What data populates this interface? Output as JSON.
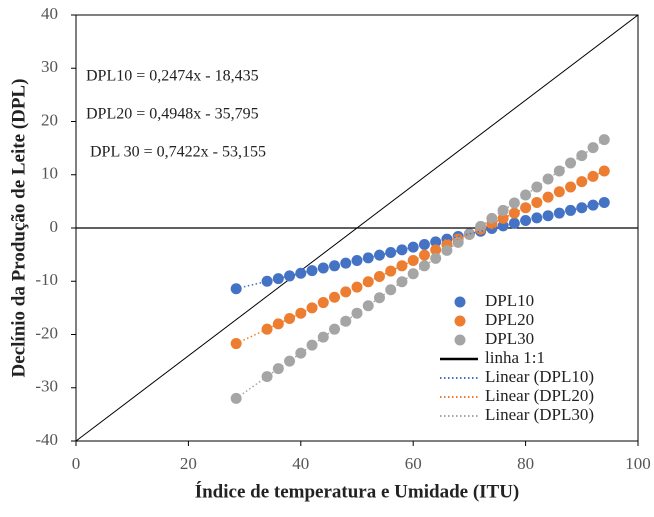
{
  "chart_data": {
    "type": "scatter",
    "x_label": "Índice de temperatura e Umidade (ITU)",
    "y_label": "Declínio da Produção de Leite (DPL)",
    "xlim": [
      0,
      100
    ],
    "ylim": [
      -40,
      40
    ],
    "xticks": [
      0,
      20,
      40,
      60,
      80,
      100
    ],
    "yticks": [
      -40,
      -30,
      -20,
      -10,
      0,
      10,
      20,
      30,
      40
    ],
    "x": [
      28.5,
      34,
      36,
      38,
      40,
      42,
      44,
      46,
      48,
      50,
      52,
      54,
      56,
      58,
      60,
      62,
      64,
      66,
      68,
      70,
      72,
      74,
      76,
      78,
      80,
      82,
      84,
      86,
      88,
      90,
      92,
      94
    ],
    "series": [
      {
        "name": "DPL10",
        "color": "#4472c4",
        "values": [
          -11.4,
          -10.0,
          -9.5,
          -9.0,
          -8.5,
          -8.0,
          -7.5,
          -7.1,
          -6.6,
          -6.1,
          -5.6,
          -5.1,
          -4.6,
          -4.1,
          -3.6,
          -3.1,
          -2.6,
          -2.1,
          -1.6,
          -1.1,
          -0.6,
          -0.1,
          0.4,
          0.9,
          1.4,
          1.9,
          2.3,
          2.8,
          3.3,
          3.8,
          4.3,
          4.8
        ]
      },
      {
        "name": "DPL20",
        "color": "#ed7d31",
        "values": [
          -21.7,
          -19.0,
          -18.0,
          -17.0,
          -16.0,
          -15.0,
          -14.0,
          -13.0,
          -12.0,
          -11.1,
          -10.1,
          -9.1,
          -8.1,
          -7.1,
          -6.1,
          -5.1,
          -4.1,
          -3.1,
          -2.1,
          -1.2,
          -0.2,
          0.8,
          1.8,
          2.8,
          3.8,
          4.8,
          5.8,
          6.8,
          7.7,
          8.7,
          9.7,
          10.7
        ]
      },
      {
        "name": "DPL30",
        "color": "#a5a5a5",
        "values": [
          -32.0,
          -27.9,
          -26.4,
          -25.0,
          -23.5,
          -22.0,
          -20.5,
          -19.0,
          -17.5,
          -16.0,
          -14.6,
          -13.1,
          -11.6,
          -10.1,
          -8.6,
          -7.1,
          -5.7,
          -4.2,
          -2.7,
          -1.2,
          0.3,
          1.8,
          3.3,
          4.7,
          6.2,
          7.7,
          9.2,
          10.7,
          12.2,
          13.6,
          15.1,
          16.6
        ]
      }
    ],
    "reference_line": {
      "name": "linha 1:1",
      "color": "#000000",
      "x": [
        0,
        100
      ],
      "values": [
        -40,
        40
      ]
    },
    "trendlines": [
      {
        "name": "Linear (DPL10)",
        "color": "#4472c4"
      },
      {
        "name": "Linear (DPL20)",
        "color": "#ed7d31"
      },
      {
        "name": "Linear (DPL30)",
        "color": "#a5a5a5"
      }
    ],
    "annotations": [
      "DPL10 = 0,2474x - 18,435",
      "DPL20 = 0,4948x - 35,795",
      "DPL 30 = 0,7422x - 53,155"
    ],
    "legend_position": "lower right"
  }
}
